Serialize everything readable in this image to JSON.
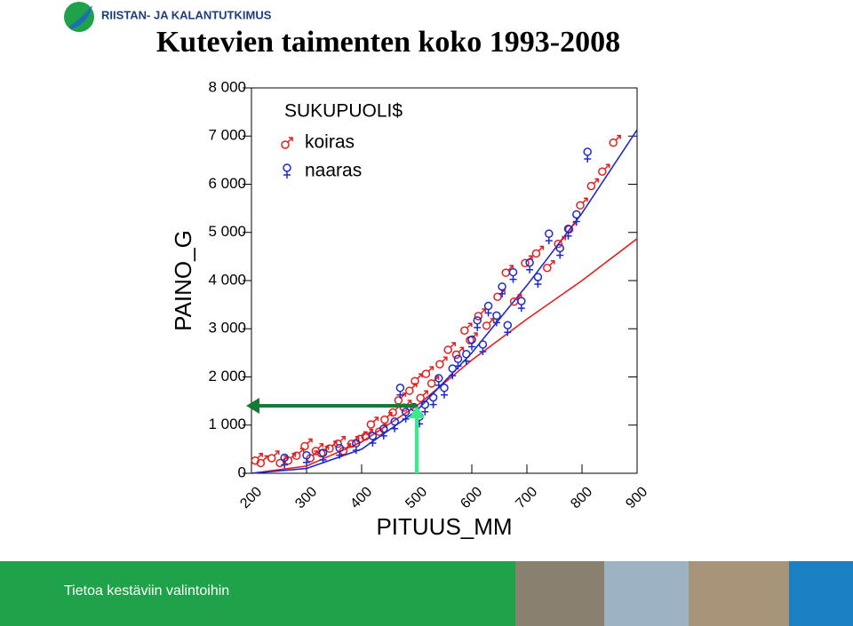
{
  "header": {
    "logo": "RIISTAN- JA KALANTUTKIMUS",
    "title": "Kutevien taimenten koko 1993-2008"
  },
  "footer": {
    "slogan": "Tietoa kestäviin valintoihin"
  },
  "chart_data": {
    "type": "scatter",
    "x_label": "PITUUS_MM",
    "y_label": "PAINO_G",
    "legend_title": "SUKUPUOLI$",
    "xlim": [
      200,
      900
    ],
    "xticks": [
      200,
      300,
      400,
      500,
      600,
      700,
      800,
      900
    ],
    "ylim": [
      0,
      8000
    ],
    "yticks": [
      0,
      {
        "value": 1000,
        "label": "1 000"
      },
      {
        "value": 2000,
        "label": "2 000"
      },
      {
        "value": 3000,
        "label": "3 000"
      },
      {
        "value": 4000,
        "label": "4 000"
      },
      {
        "value": 5000,
        "label": "5 000"
      },
      {
        "value": 6000,
        "label": "6 000"
      },
      {
        "value": 7000,
        "label": "7 000"
      },
      {
        "value": 8000,
        "label": "8 000"
      }
    ],
    "series": [
      {
        "name": "koiras",
        "color": "#e02020",
        "x": [
          210,
          220,
          240,
          255,
          270,
          285,
          300,
          310,
          320,
          330,
          345,
          360,
          370,
          385,
          400,
          410,
          420,
          435,
          445,
          460,
          470,
          480,
          490,
          500,
          510,
          520,
          530,
          545,
          560,
          575,
          590,
          600,
          615,
          630,
          650,
          665,
          680,
          700,
          720,
          740,
          760,
          780,
          800,
          820,
          840,
          860
        ],
        "values": [
          300,
          250,
          350,
          250,
          300,
          400,
          600,
          350,
          500,
          450,
          550,
          650,
          500,
          650,
          750,
          800,
          1050,
          900,
          1150,
          1300,
          1550,
          1400,
          1750,
          1950,
          1600,
          2100,
          1900,
          2300,
          2600,
          2500,
          3000,
          2800,
          3300,
          3100,
          3700,
          4200,
          3600,
          4400,
          4600,
          4300,
          4800,
          5100,
          5600,
          6000,
          6300,
          6900
        ]
      },
      {
        "name": "naaras",
        "color": "#1c2bc8",
        "x": [
          260,
          300,
          330,
          360,
          390,
          420,
          440,
          460,
          470,
          480,
          495,
          505,
          515,
          530,
          540,
          550,
          565,
          575,
          590,
          600,
          610,
          620,
          630,
          645,
          655,
          665,
          675,
          690,
          705,
          720,
          740,
          760,
          775,
          790,
          810
        ],
        "values": [
          250,
          300,
          350,
          450,
          550,
          700,
          850,
          1000,
          1700,
          1200,
          1300,
          1100,
          1350,
          1500,
          1900,
          1700,
          2100,
          2300,
          2400,
          2700,
          3100,
          2600,
          3400,
          3200,
          3800,
          3000,
          4100,
          3500,
          4300,
          4000,
          4900,
          4600,
          5000,
          5300,
          6600
        ]
      }
    ],
    "fits": [
      {
        "color": "#e02020",
        "x": [
          200,
          300,
          400,
          500,
          600,
          700,
          800,
          900
        ],
        "values": [
          0,
          150,
          650,
          1400,
          2350,
          3200,
          4000,
          4870
        ]
      },
      {
        "color": "#1c2bc8",
        "x": [
          200,
          300,
          400,
          500,
          600,
          700,
          800,
          900
        ],
        "values": [
          0,
          100,
          500,
          1300,
          2500,
          3900,
          5400,
          7130
        ]
      }
    ],
    "highlight": {
      "x": 500,
      "y": 1400,
      "color_x": "#33ee88",
      "color_y": "#157a35"
    }
  }
}
